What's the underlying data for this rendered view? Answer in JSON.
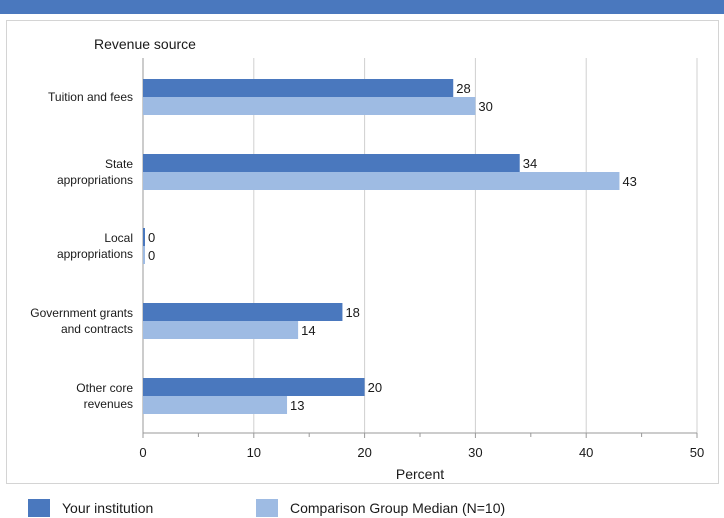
{
  "colors": {
    "header_bar": "#4a78be",
    "your_institution": "#4a78be",
    "comparison": "#9ebbe3",
    "grid": "#d0d0d0"
  },
  "chart_data": {
    "type": "bar",
    "orientation": "horizontal",
    "title": "",
    "ylabel": "Revenue source",
    "xlabel": "Percent",
    "xlim": [
      0,
      50
    ],
    "xticks": [
      0,
      10,
      20,
      30,
      40,
      50
    ],
    "grid": true,
    "legend_position": "bottom",
    "categories": [
      [
        "Tuition and fees"
      ],
      [
        "State",
        "appropriations"
      ],
      [
        "Local",
        "appropriations"
      ],
      [
        "Government grants",
        "and contracts"
      ],
      [
        "Other core",
        "revenues"
      ]
    ],
    "series": [
      {
        "name": "Your institution",
        "color": "#4a78be",
        "values": [
          28,
          34,
          0,
          18,
          20
        ]
      },
      {
        "name": "Comparison Group Median (N=10)",
        "color": "#9ebbe3",
        "values": [
          30,
          43,
          0,
          14,
          13
        ]
      }
    ]
  }
}
